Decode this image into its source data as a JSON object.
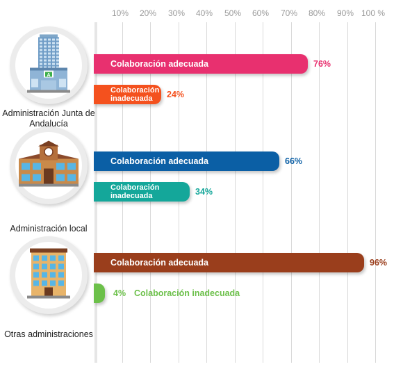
{
  "chart_data": {
    "type": "bar",
    "orientation": "horizontal",
    "x_ticks": [
      "10%",
      "20%",
      "30%",
      "40%",
      "50%",
      "60%",
      "70%",
      "80%",
      "90%",
      "100 %"
    ],
    "xlim": [
      0,
      100
    ],
    "grid": true,
    "groups": [
      {
        "name": "Administración Junta de Andalucía",
        "icon": "government-tower-building-icon",
        "bars": [
          {
            "label": "Colaboración adecuada",
            "value": 76,
            "value_label": "76%",
            "color": "#e8306f"
          },
          {
            "label": "Colaboración inadecuada",
            "value": 24,
            "value_label": "24%",
            "color": "#f4511e"
          }
        ]
      },
      {
        "name": "Administración local",
        "icon": "town-hall-building-icon",
        "bars": [
          {
            "label": "Colaboración adecuada",
            "value": 66,
            "value_label": "66%",
            "color": "#0b5fa5"
          },
          {
            "label": "Colaboración inadecuada",
            "value": 34,
            "value_label": "34%",
            "color": "#14a79a"
          }
        ]
      },
      {
        "name": "Otras administraciones",
        "icon": "office-building-icon",
        "bars": [
          {
            "label": "Colaboración adecuada",
            "value": 96,
            "value_label": "96%",
            "color": "#9a3e1c"
          },
          {
            "label": "Colaboración inadecuada",
            "value": 4,
            "value_label": "4%",
            "color": "#6cc04a"
          }
        ]
      }
    ]
  }
}
